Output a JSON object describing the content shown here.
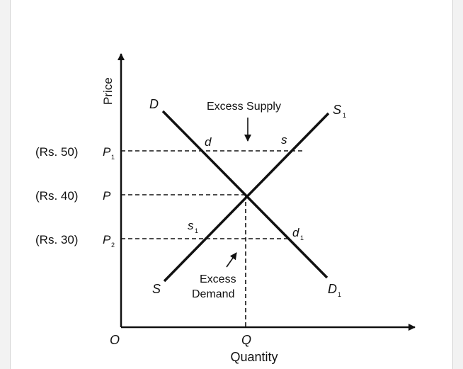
{
  "axes": {
    "y_label": "Price",
    "x_label": "Quantity",
    "origin": "O",
    "q_label": "Q"
  },
  "price_labels": [
    {
      "rs": "(Rs. 50)",
      "p": "P",
      "sub": "1"
    },
    {
      "rs": "(Rs. 40)",
      "p": "P",
      "sub": ""
    },
    {
      "rs": "(Rs. 30)",
      "p": "P",
      "sub": "2"
    }
  ],
  "curves": {
    "demand_top": "D",
    "demand_bottom": "D",
    "demand_bottom_sub": "1",
    "supply_top": "S",
    "supply_top_sub": "1",
    "supply_bottom": "S"
  },
  "points": {
    "d": "d",
    "s": "s",
    "s1": "s",
    "s1_sub": "1",
    "d1": "d",
    "d1_sub": "1"
  },
  "annotations": {
    "excess_supply": "Excess Supply",
    "excess_demand_line1": "Excess",
    "excess_demand_line2": "Demand"
  },
  "colors": {
    "ink": "#111111",
    "background": "#ffffff"
  }
}
